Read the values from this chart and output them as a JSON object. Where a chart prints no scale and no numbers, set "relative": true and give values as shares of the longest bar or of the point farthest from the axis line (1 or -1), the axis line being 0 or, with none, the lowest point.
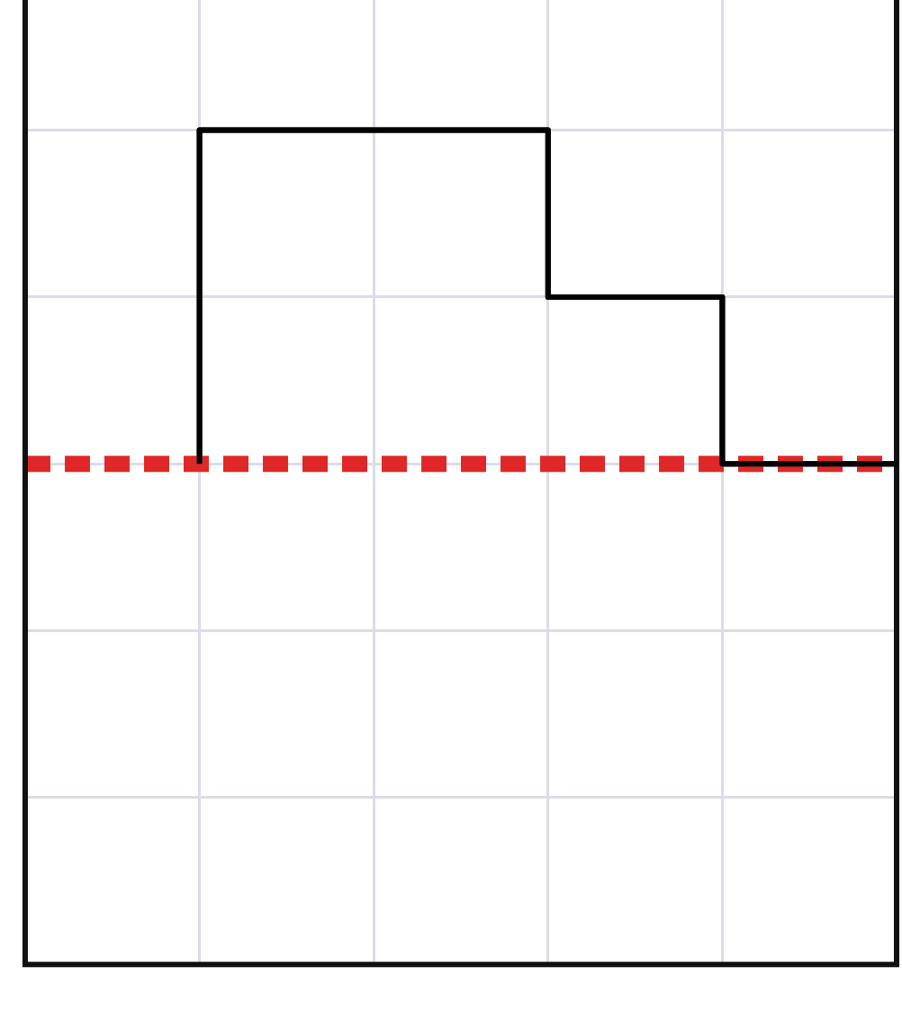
{
  "chart_data": {
    "type": "step",
    "relative": true,
    "categories": [
      null,
      null,
      null,
      null,
      null,
      null
    ],
    "series": [
      {
        "color": "#000000",
        "values": [
          null,
          0.6,
          1,
          1,
          0.8,
          0.6
        ]
      }
    ],
    "ref_lines": [
      {
        "axis": "y",
        "value": 0.6,
        "color": "#e02828",
        "line_style": "dashed"
      }
    ],
    "grid": true,
    "legend": false,
    "marker": "none",
    "line_style": "solid"
  }
}
